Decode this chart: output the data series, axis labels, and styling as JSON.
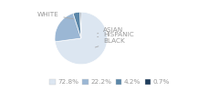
{
  "labels": [
    "WHITE",
    "HISPANIC",
    "BLACK",
    "ASIAN"
  ],
  "values": [
    72.8,
    22.2,
    4.2,
    0.7
  ],
  "colors": [
    "#dce6f1",
    "#9bb7d4",
    "#5a86a8",
    "#1f3d5c"
  ],
  "legend_labels": [
    "72.8%",
    "22.2%",
    "4.2%",
    "0.7%"
  ],
  "startangle": 90,
  "font_size": 5.2,
  "text_color": "#999999",
  "line_color": "#aaaaaa"
}
